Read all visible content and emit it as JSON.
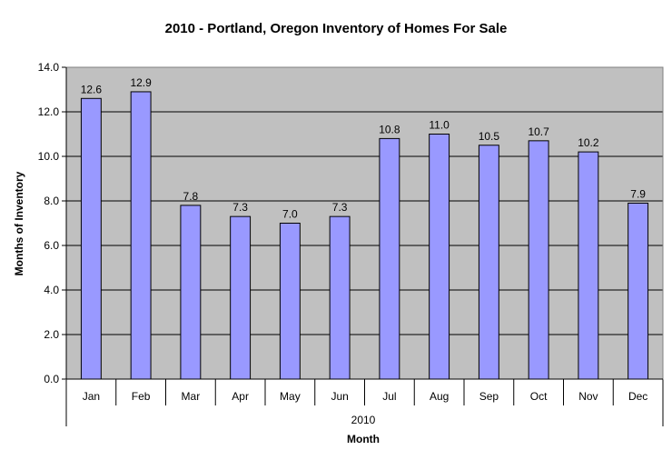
{
  "chart_data": {
    "type": "bar",
    "title": "2010 - Portland, Oregon Inventory of Homes For Sale",
    "xlabel": "Month",
    "ylabel": "Months of Inventory",
    "group_label": "2010",
    "categories": [
      "Jan",
      "Feb",
      "Mar",
      "Apr",
      "May",
      "Jun",
      "Jul",
      "Aug",
      "Sep",
      "Oct",
      "Nov",
      "Dec"
    ],
    "values": [
      12.6,
      12.9,
      7.8,
      7.3,
      7.0,
      7.3,
      10.8,
      11.0,
      10.5,
      10.7,
      10.2,
      7.9
    ],
    "value_labels": [
      "12.6",
      "12.9",
      "7.8",
      "7.3",
      "7.0",
      "7.3",
      "10.8",
      "11.0",
      "10.5",
      "10.7",
      "10.2",
      "7.9"
    ],
    "ylim": [
      0,
      14
    ],
    "yticks": [
      "0.0",
      "2.0",
      "4.0",
      "6.0",
      "8.0",
      "10.0",
      "12.0",
      "14.0"
    ],
    "grid": true,
    "legend": "none",
    "colors": {
      "bar_fill": "#9999ff",
      "bar_stroke": "#000000",
      "plot_background": "#c0c0c0",
      "gridline": "#000000"
    }
  }
}
